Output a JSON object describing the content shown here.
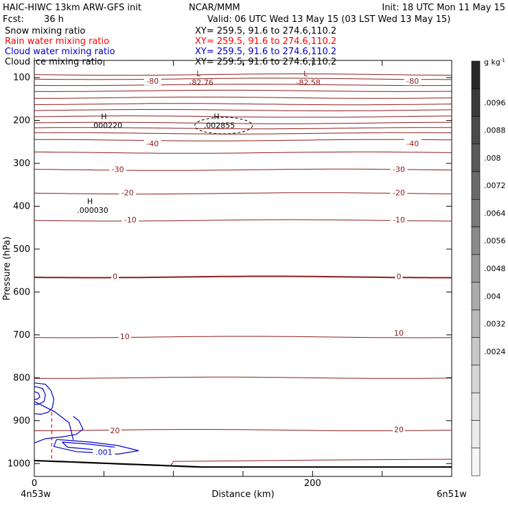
{
  "header": {
    "model": "HAIC-HIWC 13km ARW-GFS init",
    "org": "NCAR/MMM",
    "init": "Init: 18 UTC Mon 11 May 15",
    "fcst_label": "Fcst:",
    "fcst_value": "36 h",
    "valid": "Valid: 06 UTC Wed 13 May 15 (03 LST Wed 13 May 15)"
  },
  "legend": [
    {
      "name": "Snow mixing ratio",
      "xy": "XY= 259.5, 91.6 to 274.6,110.2",
      "color": "#000000"
    },
    {
      "name": "Rain water mixing ratio",
      "xy": "XY= 259.5, 91.6 to 274.6,110.2",
      "color": "#ff0000"
    },
    {
      "name": "Cloud water mixing ratio",
      "xy": "XY= 259.5, 91.6 to 274.6,110.2",
      "color": "#0000cc"
    },
    {
      "name": "Cloud ice mixing ratio",
      "xy": "XY= 259.5, 91.6 to 274.6,110.2",
      "color": "#000000"
    }
  ],
  "colors": {
    "temperature_contour": "#8b1a1a",
    "cloud_water": "#0000cc",
    "rain_water": "#ff0000",
    "terrain": "#000000"
  },
  "chart_data": {
    "type": "line",
    "xlabel": "Distance (km)",
    "ylabel": "Pressure (hPa)",
    "xlim": [
      0,
      300
    ],
    "ylim": [
      1030,
      60
    ],
    "x_ticks": [
      0,
      200
    ],
    "y_ticks": [
      100,
      200,
      300,
      400,
      500,
      600,
      700,
      800,
      900,
      1000
    ],
    "x_endpoints": {
      "left": "4n53w",
      "right": "6n51w"
    },
    "temperature_contour_labels": [
      {
        "text": "-80",
        "x": 85,
        "p": 110
      },
      {
        "text": "-80",
        "x": 272,
        "p": 110
      },
      {
        "text": "-40",
        "x": 85,
        "p": 255
      },
      {
        "text": "-40",
        "x": 272,
        "p": 255
      },
      {
        "text": "-30",
        "x": 60,
        "p": 315
      },
      {
        "text": "-30",
        "x": 262,
        "p": 315
      },
      {
        "text": "-20",
        "x": 67,
        "p": 370
      },
      {
        "text": "-20",
        "x": 262,
        "p": 370
      },
      {
        "text": "-10",
        "x": 69,
        "p": 433
      },
      {
        "text": "-10",
        "x": 262,
        "p": 433
      },
      {
        "text": "0",
        "x": 58,
        "p": 565
      },
      {
        "text": "0",
        "x": 262,
        "p": 565
      },
      {
        "text": "10",
        "x": 65,
        "p": 705
      },
      {
        "text": "10",
        "x": 262,
        "p": 697
      },
      {
        "text": "20",
        "x": 58,
        "p": 924
      },
      {
        "text": "20",
        "x": 262,
        "p": 922
      }
    ],
    "extrema": [
      {
        "type": "L",
        "value": "-82.76",
        "x": 118,
        "p": 100
      },
      {
        "type": "L",
        "value": "-82.58",
        "x": 195,
        "p": 100
      },
      {
        "type": "H",
        "value": ".000220",
        "x": 50,
        "p": 200
      },
      {
        "type": "H",
        "value": ".002855",
        "x": 131,
        "p": 200
      },
      {
        "type": "H",
        "value": ".000030",
        "x": 40,
        "p": 398
      }
    ],
    "cloud_water_label": {
      "text": ".001",
      "x": 50,
      "p": 975
    },
    "colorbar": {
      "unit": "g kg",
      "unit_exponent": "-1",
      "labels": [
        ".0096",
        ".0088",
        ".008",
        ".0072",
        ".0064",
        ".0056",
        ".0048",
        ".004",
        ".0032",
        ".0024"
      ],
      "fills": [
        "#2a2a2a",
        "#3a3a3a",
        "#4a4a4a",
        "#5a5a5a",
        "#6a6a6a",
        "#7a7a7a",
        "#8a8a8a",
        "#9a9a9a",
        "#aaaaaa",
        "#bababa",
        "#c8c8c8",
        "#d6d6d6",
        "#e2e2e2",
        "#ececec",
        "#f6f6f6"
      ]
    }
  }
}
